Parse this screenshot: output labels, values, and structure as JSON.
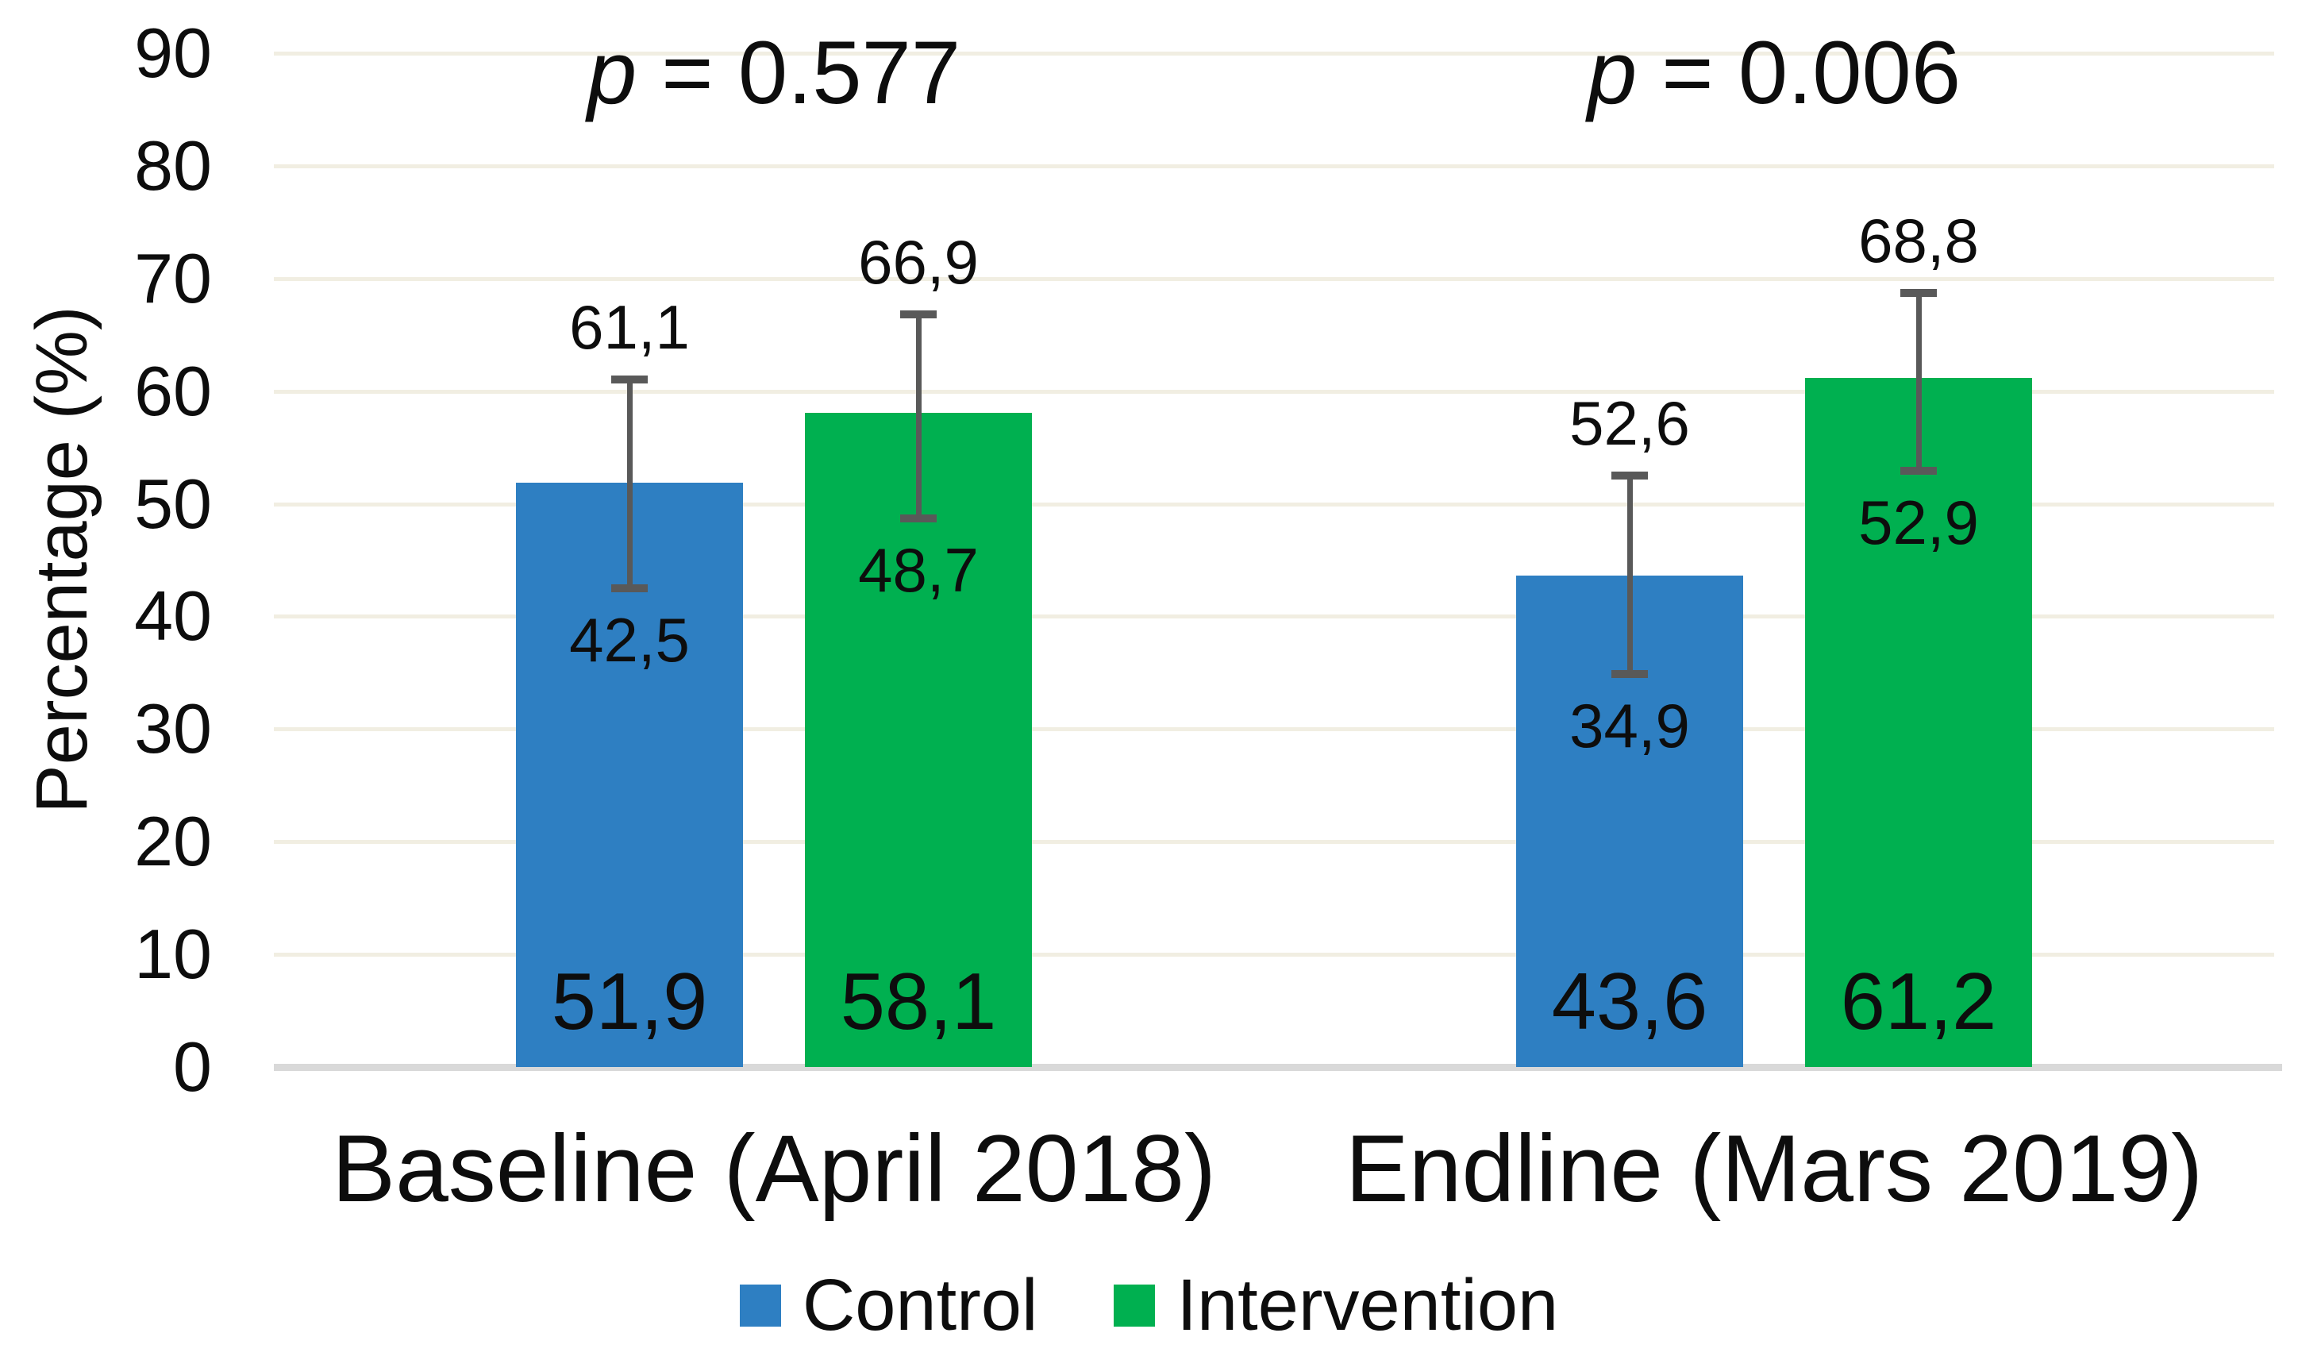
{
  "chart_data": {
    "type": "bar",
    "title": "",
    "ylabel": "Percentage (%)",
    "ylim": [
      0,
      90
    ],
    "ytick_step": 10,
    "ytick_labels": [
      "0",
      "10",
      "20",
      "30",
      "40",
      "50",
      "60",
      "70",
      "80",
      "90"
    ],
    "grid": true,
    "legend_position": "bottom",
    "categories": [
      "Baseline (April 2018)",
      "Endline (Mars 2019)"
    ],
    "series": [
      {
        "name": "Control",
        "color": "#2e7fc2",
        "values": [
          51.9,
          43.6
        ],
        "value_labels": [
          "51,9",
          "43,6"
        ],
        "error_low": [
          42.5,
          34.9
        ],
        "error_low_labels": [
          "42,5",
          "34,9"
        ],
        "error_high": [
          61.1,
          52.6
        ],
        "error_high_labels": [
          "61,1",
          "52,6"
        ]
      },
      {
        "name": "Intervention",
        "color": "#00b050",
        "values": [
          58.1,
          61.2
        ],
        "value_labels": [
          "58,1",
          "61,2"
        ],
        "error_low": [
          48.7,
          52.9
        ],
        "error_low_labels": [
          "48,7",
          "52,9"
        ],
        "error_high": [
          66.9,
          68.8
        ],
        "error_high_labels": [
          "66,9",
          "68,8"
        ]
      }
    ],
    "annotations": [
      {
        "symbol": "p",
        "text": " = 0.577",
        "category_index": 0
      },
      {
        "symbol": "p",
        "text": " = 0.006",
        "category_index": 1
      }
    ],
    "error_bar_color": "#595959",
    "gridline_color": "#f1eee2",
    "axis_line_color": "#d9d9d9",
    "text_color": "#0d0d0d",
    "background": "#ffffff"
  }
}
